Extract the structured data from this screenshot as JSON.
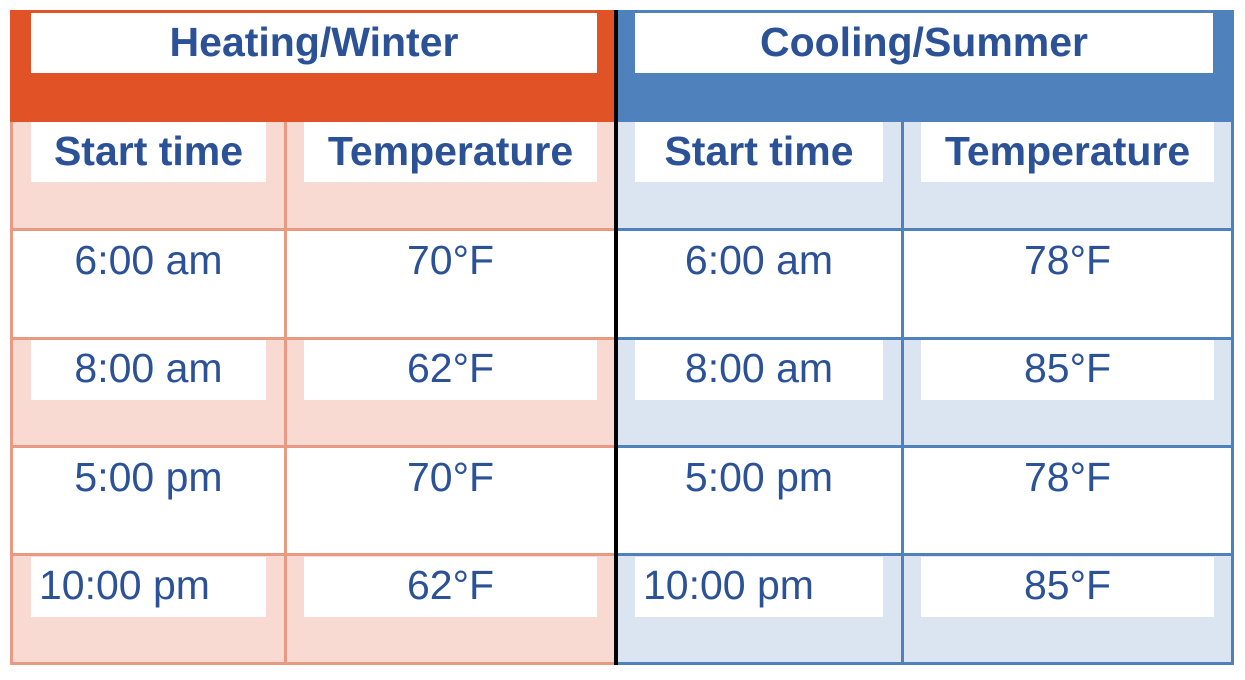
{
  "heating": {
    "title": "Heating/Winter",
    "start_time_label": "Start time",
    "temperature_label": "Temperature",
    "rows": [
      {
        "time": "6:00 am",
        "temp": "70°F"
      },
      {
        "time": "8:00 am",
        "temp": "62°F"
      },
      {
        "time": "5:00 pm",
        "temp": "70°F"
      },
      {
        "time": "10:00 pm",
        "temp": "62°F"
      }
    ]
  },
  "cooling": {
    "title": "Cooling/Summer",
    "start_time_label": "Start time",
    "temperature_label": "Temperature",
    "rows": [
      {
        "time": "6:00 am",
        "temp": "78°F"
      },
      {
        "time": "8:00 am",
        "temp": "85°F"
      },
      {
        "time": "5:00 pm",
        "temp": "78°F"
      },
      {
        "time": "10:00 pm",
        "temp": "85°F"
      }
    ]
  },
  "colors": {
    "heating_accent": "#e15326",
    "heating_tint": "#f8dad2",
    "heating_line": "#e89a83",
    "cooling_accent": "#4f81bd",
    "cooling_tint": "#dbe5f1",
    "cooling_line": "#4f81bd",
    "text": "#2b5196"
  }
}
